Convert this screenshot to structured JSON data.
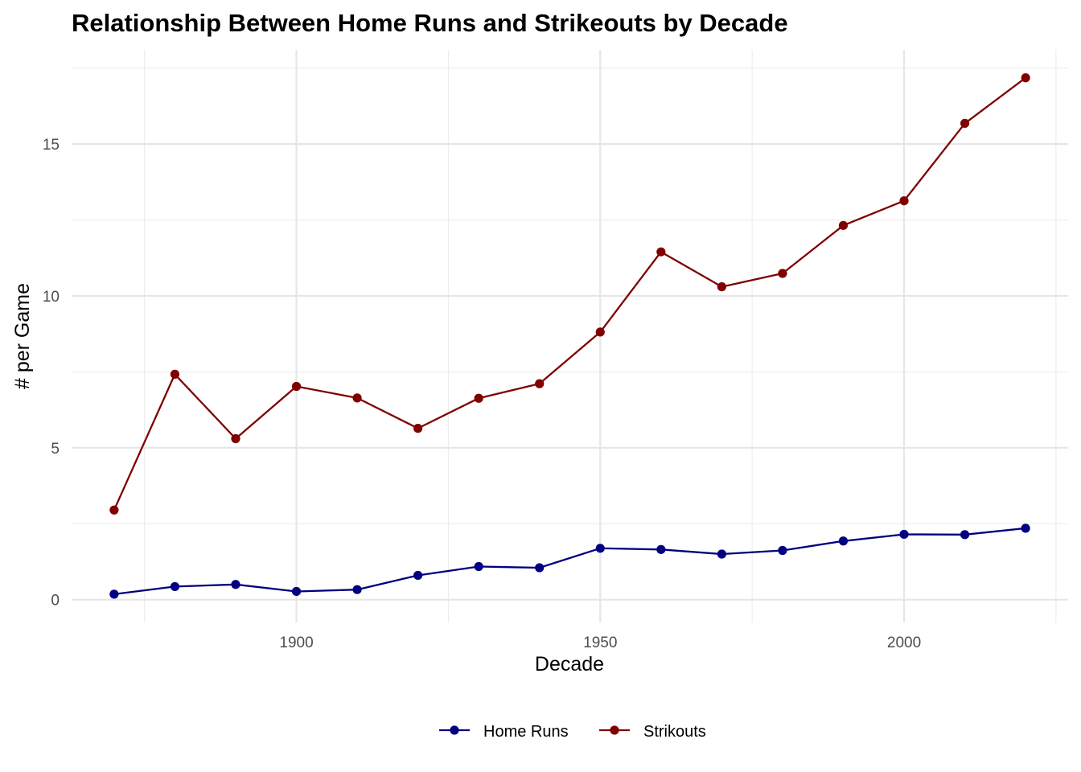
{
  "chart_data": {
    "type": "line",
    "title": "Relationship Between Home Runs and Strikeouts by Decade",
    "xlabel": "Decade",
    "ylabel": "# per Game",
    "x": [
      1870,
      1880,
      1890,
      1900,
      1910,
      1920,
      1930,
      1940,
      1950,
      1960,
      1970,
      1980,
      1990,
      2000,
      2010,
      2020
    ],
    "xlim": [
      1863,
      2027
    ],
    "ylim": [
      -0.75,
      18.1
    ],
    "x_ticks": [
      1900,
      1950,
      2000
    ],
    "x_tick_labels": [
      "1900",
      "1950",
      "2000"
    ],
    "x_minor_ticks": [
      1875,
      1925,
      1975,
      2025
    ],
    "y_ticks": [
      0,
      5,
      10,
      15
    ],
    "y_tick_labels": [
      "0",
      "5",
      "10",
      "15"
    ],
    "y_minor_ticks": [
      2.5,
      7.5,
      12.5,
      17.5
    ],
    "grid": true,
    "legend_position": "bottom",
    "series": [
      {
        "name": "Home Runs",
        "color": "#000080",
        "values": [
          0.18,
          0.43,
          0.5,
          0.27,
          0.33,
          0.8,
          1.09,
          1.05,
          1.69,
          1.65,
          1.5,
          1.62,
          1.93,
          2.15,
          2.14,
          2.35
        ]
      },
      {
        "name": "Strikouts",
        "color": "#800000",
        "values": [
          2.95,
          7.42,
          5.3,
          7.02,
          6.64,
          5.64,
          6.63,
          7.11,
          8.81,
          11.45,
          10.3,
          10.74,
          12.32,
          13.13,
          15.68,
          17.18
        ]
      }
    ]
  }
}
